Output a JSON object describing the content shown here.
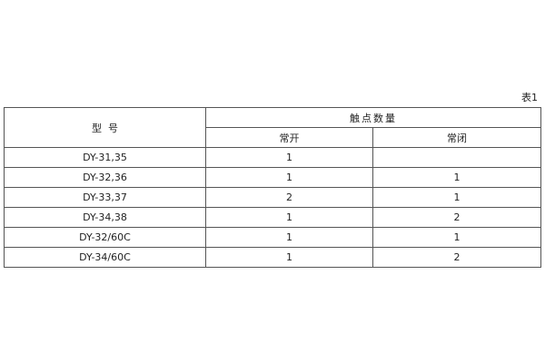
{
  "caption": "表1",
  "header": {
    "model": "型  号",
    "contacts": "触点数量",
    "normally_open": "常开",
    "normally_closed": "常闭"
  },
  "rows": [
    {
      "model": "DY-31,35",
      "no": "1",
      "nc": ""
    },
    {
      "model": "DY-32,36",
      "no": "1",
      "nc": "1"
    },
    {
      "model": "DY-33,37",
      "no": "2",
      "nc": "1"
    },
    {
      "model": "DY-34,38",
      "no": "1",
      "nc": "2"
    },
    {
      "model": "DY-32/60C",
      "no": "1",
      "nc": "1"
    },
    {
      "model": "DY-34/60C",
      "no": "1",
      "nc": "2"
    }
  ]
}
